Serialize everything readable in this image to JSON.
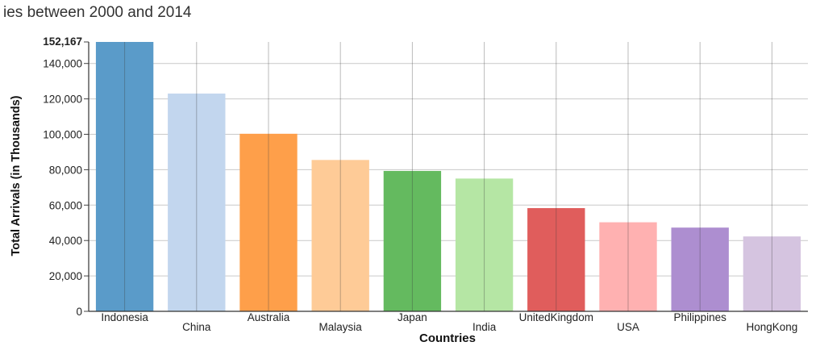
{
  "title": "ies between 2000 and 2014",
  "chart_data": {
    "type": "bar",
    "xlabel": "Countries",
    "ylabel": "Total Arrivals (in Thousands)",
    "ylim": [
      0,
      152167
    ],
    "yticks": [
      "0",
      "20,000",
      "40,000",
      "60,000",
      "80,000",
      "100,000",
      "120,000",
      "140,000"
    ],
    "ymax_label": "152,167",
    "grid": true,
    "categories": [
      "Indonesia",
      "China",
      "Australia",
      "Malaysia",
      "Japan",
      "India",
      "UnitedKingdom",
      "USA",
      "Philippines",
      "HongKong"
    ],
    "values": [
      152167,
      123000,
      100300,
      85500,
      79300,
      75000,
      58300,
      50300,
      47300,
      42300
    ],
    "colors": [
      "#5a9bc9",
      "#c2d6ee",
      "#fe9f4a",
      "#fecb97",
      "#64ba5f",
      "#b5e6a4",
      "#e05d5c",
      "#ffb1b1",
      "#ad8ed0",
      "#d5c4e0"
    ]
  }
}
